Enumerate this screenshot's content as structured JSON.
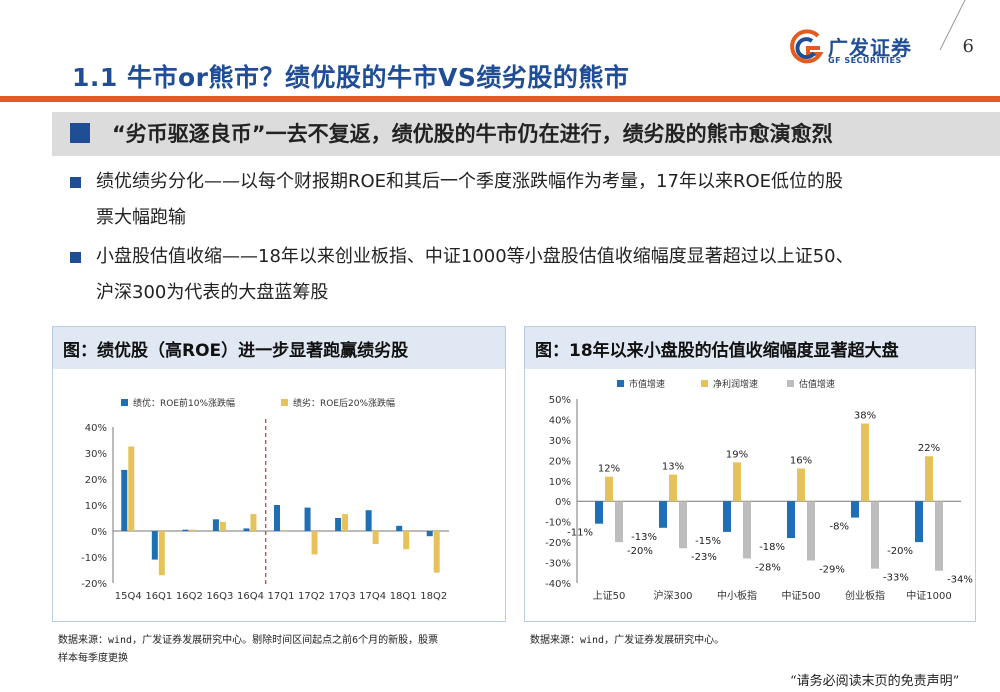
{
  "header": {
    "title": "1.1 牛市or熊市？绩优股的牛市VS绩劣股的熊市",
    "page_number": "6",
    "logo_cn": "广发证券",
    "logo_en": "GF SECURITIES"
  },
  "subtitle": "“劣币驱逐良币”一去不复返，绩优股的牛市仍在进行，绩劣股的熊市愈演愈烈",
  "bullets": [
    {
      "line1": "绩优绩劣分化——以每个财报期ROE和其后一个季度涨跌幅作为考量，17年以来ROE低位的股",
      "line2": "票大幅跑输"
    },
    {
      "line1": "小盘股估值收缩——18年以来创业板指、中证1000等小盘股估值收缩幅度显著超过以上证50、",
      "line2": "沪深300为代表的大盘蓝筹股"
    }
  ],
  "left_panel": {
    "title": "图：绩优股（高ROE）进一步显著跑赢绩劣股",
    "source_line1": "数据来源：wind，广发证券发展研究中心。剔除时间区间起点之前6个月的新股，股票",
    "source_line2": "样本每季度更换"
  },
  "right_panel": {
    "title": "图：18年以来小盘股的估值收缩幅度显著超大盘",
    "source_line1": "数据来源：wind，广发证券发展研究中心。"
  },
  "footer": "“请务必阅读末页的免责声明”",
  "colors": {
    "blue": "#1f6fb5",
    "gold": "#e6c25a",
    "gray": "#bdbdbd",
    "accent": "#e35b1e",
    "brand": "#1f4e96"
  },
  "chart_data": [
    {
      "type": "bar",
      "categories": [
        "15Q4",
        "16Q1",
        "16Q2",
        "16Q3",
        "16Q4",
        "17Q1",
        "17Q2",
        "17Q3",
        "17Q4",
        "18Q1",
        "18Q2"
      ],
      "series": [
        {
          "name": "绩优：ROE前10%涨跌幅",
          "values": [
            23.5,
            -11,
            0.5,
            4.5,
            1,
            10,
            9,
            5,
            8,
            2,
            -2
          ]
        },
        {
          "name": "绩劣：ROE后20%涨跌幅",
          "values": [
            32.5,
            -17,
            0.5,
            3.5,
            6.5,
            0,
            -9,
            6.5,
            -5,
            -7,
            -16
          ]
        }
      ],
      "yticks": [
        "40%",
        "30%",
        "20%",
        "10%",
        "0%",
        "-10%",
        "-20%"
      ],
      "ylim": [
        -20,
        40
      ],
      "divider_after": "16Q4"
    },
    {
      "type": "bar",
      "categories": [
        "上证50",
        "沪深300",
        "中小板指",
        "中证500",
        "创业板指",
        "中证1000"
      ],
      "series": [
        {
          "name": "市值增速",
          "values": [
            -11,
            -13,
            -15,
            -18,
            -8,
            -20
          ],
          "labels": [
            "-11%",
            "-13%",
            "-15%",
            "-18%",
            "-8%",
            "-20%"
          ]
        },
        {
          "name": "净利润增速",
          "values": [
            12,
            13,
            19,
            16,
            38,
            22
          ],
          "labels": [
            "12%",
            "13%",
            "19%",
            "16%",
            "38%",
            "22%"
          ]
        },
        {
          "name": "估值增速",
          "values": [
            -20,
            -23,
            -28,
            -29,
            -33,
            -34
          ],
          "labels": [
            "-20%",
            "-23%",
            "-28%",
            "-29%",
            "-33%",
            "-34%"
          ]
        }
      ],
      "yticks": [
        "50%",
        "40%",
        "30%",
        "20%",
        "10%",
        "0%",
        "-10%",
        "-20%",
        "-30%",
        "-40%"
      ],
      "ylim": [
        -40,
        50
      ]
    }
  ]
}
